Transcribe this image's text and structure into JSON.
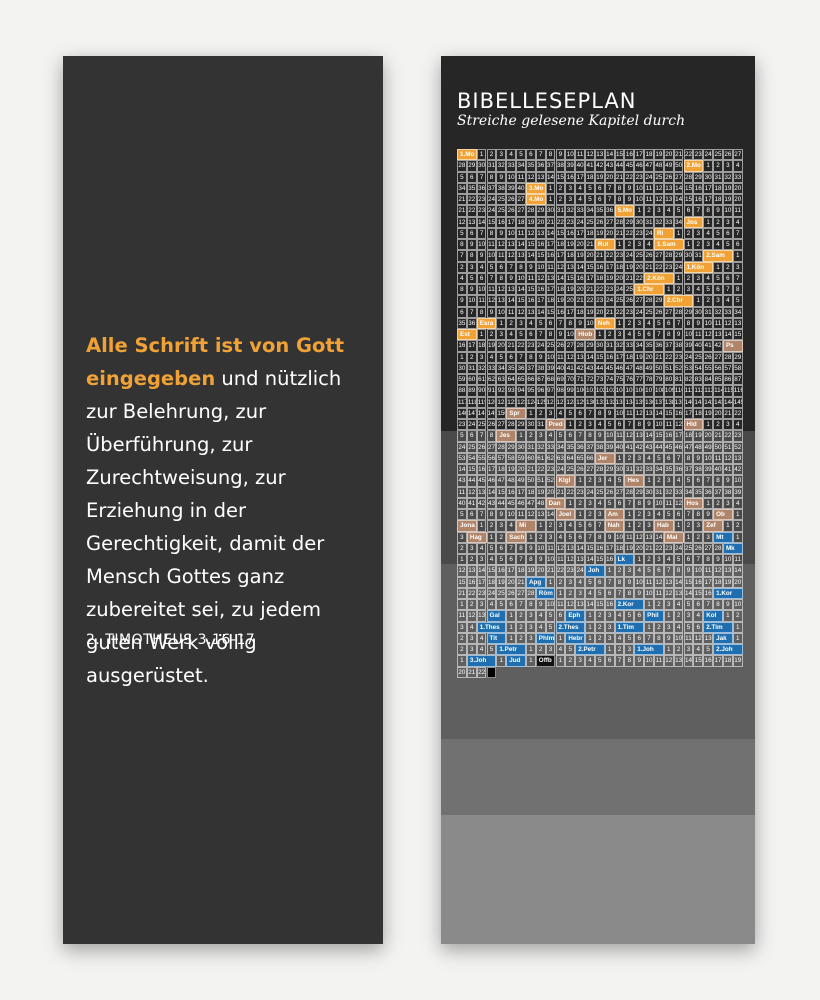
{
  "quote": {
    "highlight": "Alle Schrift ist von Gott eingegeben",
    "rest": " und nützlich zur Belehrung, zur Überführung, zur Zurechtweisung, zur Erziehung in der Gerechtigkeit, damit der Mensch Gottes ganz zubereitet sei, zu jedem guten Werk völlig ausgerüstet.",
    "reference": "2. TIMOTHEUS 3,16-17"
  },
  "plan": {
    "title": "BIBELLESEPLAN",
    "subtitle": "Streiche gelesene Kapitel durch",
    "columns": 29,
    "colors": {
      "ot": "#262626",
      "poetry": "#4a4a4a",
      "prophets": "#5f5f5f",
      "gospels": "#717171",
      "epistles": "#8a8a8a",
      "highlight_ot": "#f0a236",
      "highlight_poetry": "#b08468",
      "highlight_prophets": "#b08468",
      "highlight_nt": "#1f6fb0",
      "highlight_last": "#111111"
    },
    "books": [
      {
        "name": "1.Mo",
        "chapters": 50,
        "group": "ot"
      },
      {
        "name": "2.Mo",
        "chapters": 40,
        "group": "ot"
      },
      {
        "name": "3.Mo",
        "chapters": 27,
        "group": "ot"
      },
      {
        "name": "4.Mo",
        "chapters": 36,
        "group": "ot"
      },
      {
        "name": "5.Mo",
        "chapters": 34,
        "group": "ot"
      },
      {
        "name": "Jos",
        "chapters": 24,
        "group": "ot"
      },
      {
        "name": "Ri",
        "chapters": 21,
        "group": "ot"
      },
      {
        "name": "Rut",
        "chapters": 4,
        "group": "ot"
      },
      {
        "name": "1.Sam",
        "chapters": 31,
        "group": "ot"
      },
      {
        "name": "2.Sam",
        "chapters": 24,
        "group": "ot"
      },
      {
        "name": "1.Kön",
        "chapters": 22,
        "group": "ot"
      },
      {
        "name": "2.Kön",
        "chapters": 25,
        "group": "ot"
      },
      {
        "name": "1.Chr",
        "chapters": 29,
        "group": "ot"
      },
      {
        "name": "2.Chr",
        "chapters": 36,
        "group": "ot"
      },
      {
        "name": "Esra",
        "chapters": 10,
        "group": "ot"
      },
      {
        "name": "Neh",
        "chapters": 13,
        "group": "ot"
      },
      {
        "name": "Est",
        "chapters": 10,
        "group": "ot"
      },
      {
        "name": "Hiob",
        "chapters": 42,
        "group": "poetry"
      },
      {
        "name": "Ps",
        "chapters": 150,
        "group": "poetry"
      },
      {
        "name": "Spr",
        "chapters": 31,
        "group": "poetry"
      },
      {
        "name": "Pred",
        "chapters": 12,
        "group": "poetry"
      },
      {
        "name": "Hld",
        "chapters": 8,
        "group": "poetry"
      },
      {
        "name": "Jes",
        "chapters": 66,
        "group": "prophets"
      },
      {
        "name": "Jer",
        "chapters": 52,
        "group": "prophets"
      },
      {
        "name": "Klgl",
        "chapters": 5,
        "group": "prophets"
      },
      {
        "name": "Hes",
        "chapters": 48,
        "group": "prophets"
      },
      {
        "name": "Dan",
        "chapters": 12,
        "group": "prophets"
      },
      {
        "name": "Hos",
        "chapters": 14,
        "group": "prophets"
      },
      {
        "name": "Joel",
        "chapters": 3,
        "group": "prophets"
      },
      {
        "name": "Am",
        "chapters": 9,
        "group": "prophets"
      },
      {
        "name": "Ob",
        "chapters": 1,
        "group": "prophets"
      },
      {
        "name": "Jona",
        "chapters": 4,
        "group": "prophets"
      },
      {
        "name": "Mi",
        "chapters": 7,
        "group": "prophets"
      },
      {
        "name": "Nah",
        "chapters": 3,
        "group": "prophets"
      },
      {
        "name": "Hab",
        "chapters": 3,
        "group": "prophets"
      },
      {
        "name": "Zef",
        "chapters": 3,
        "group": "prophets"
      },
      {
        "name": "Hag",
        "chapters": 2,
        "group": "prophets"
      },
      {
        "name": "Sach",
        "chapters": 14,
        "group": "prophets"
      },
      {
        "name": "Mal",
        "chapters": 3,
        "group": "prophets"
      },
      {
        "name": "Mt",
        "chapters": 28,
        "group": "gospels"
      },
      {
        "name": "Mk",
        "chapters": 16,
        "group": "gospels"
      },
      {
        "name": "Lk",
        "chapters": 24,
        "group": "gospels"
      },
      {
        "name": "Joh",
        "chapters": 21,
        "group": "gospels"
      },
      {
        "name": "Apg",
        "chapters": 28,
        "group": "gospels"
      },
      {
        "name": "Röm",
        "chapters": 16,
        "group": "epistles"
      },
      {
        "name": "1.Kor",
        "chapters": 16,
        "group": "epistles"
      },
      {
        "name": "2.Kor",
        "chapters": 13,
        "group": "epistles"
      },
      {
        "name": "Gal",
        "chapters": 6,
        "group": "epistles"
      },
      {
        "name": "Eph",
        "chapters": 6,
        "group": "epistles"
      },
      {
        "name": "Phil",
        "chapters": 4,
        "group": "epistles"
      },
      {
        "name": "Kol",
        "chapters": 4,
        "group": "epistles"
      },
      {
        "name": "1.Thes",
        "chapters": 5,
        "group": "epistles"
      },
      {
        "name": "2.Thes",
        "chapters": 3,
        "group": "epistles"
      },
      {
        "name": "1.Tim",
        "chapters": 6,
        "group": "epistles"
      },
      {
        "name": "2.Tim",
        "chapters": 4,
        "group": "epistles"
      },
      {
        "name": "Tit",
        "chapters": 3,
        "group": "epistles"
      },
      {
        "name": "Phlm",
        "chapters": 1,
        "group": "epistles"
      },
      {
        "name": "Hebr",
        "chapters": 13,
        "group": "epistles"
      },
      {
        "name": "Jak",
        "chapters": 5,
        "group": "epistles"
      },
      {
        "name": "1.Petr",
        "chapters": 5,
        "group": "epistles"
      },
      {
        "name": "2.Petr",
        "chapters": 3,
        "group": "epistles"
      },
      {
        "name": "1.Joh",
        "chapters": 5,
        "group": "epistles"
      },
      {
        "name": "2.Joh",
        "chapters": 1,
        "group": "epistles"
      },
      {
        "name": "3.Joh",
        "chapters": 1,
        "group": "epistles"
      },
      {
        "name": "Jud",
        "chapters": 1,
        "group": "epistles"
      },
      {
        "name": "Offb",
        "chapters": 22,
        "group": "epistles"
      }
    ]
  }
}
